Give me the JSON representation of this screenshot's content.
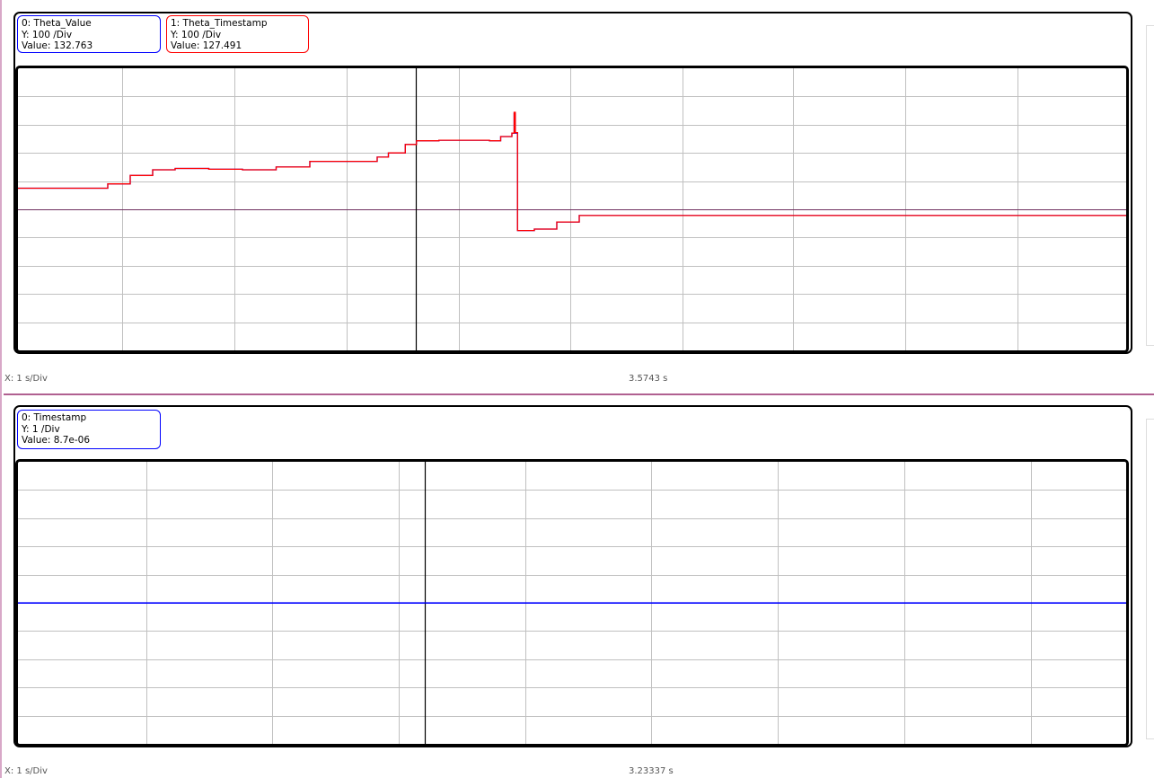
{
  "top_plot": {
    "x_scale": "X: 1 s/Div",
    "cursor_time": "3.5743 s",
    "legends": [
      {
        "name": "0: Theta_Value",
        "yscale": "Y: 100 /Div",
        "value": "Value: 132.763",
        "color": "#0000ff"
      },
      {
        "name": "1: Theta_Timestamp",
        "yscale": "Y: 100 /Div",
        "value": "Value: 127.491",
        "color": "#ff0000"
      }
    ]
  },
  "bottom_plot": {
    "x_scale": "X: 1 s/Div",
    "cursor_time": "3.23337 s",
    "legends": [
      {
        "name": "0: Timestamp",
        "yscale": "Y: 1 /Div",
        "value": "Value: 8.7e-06",
        "color": "#0000ff"
      }
    ]
  },
  "chart_data": [
    {
      "type": "line",
      "x_per_div_s": 1,
      "y_per_div": 100,
      "ylim": [
        -500,
        500
      ],
      "grid": true,
      "series": [
        {
          "name": "0: Theta_Value",
          "color": "#0000ff",
          "x": [
            0,
            0.6,
            0.8,
            1.0,
            1.2,
            1.4,
            1.7,
            2.0,
            2.3,
            2.6,
            3.2,
            3.3,
            3.45,
            3.55,
            3.75,
            4.2,
            4.3,
            4.4,
            4.42,
            4.43,
            4.45,
            4.6,
            4.8,
            5.0,
            9.95
          ],
          "y": [
            75,
            75,
            90,
            120,
            140,
            145,
            142,
            140,
            150,
            170,
            185,
            200,
            230,
            243,
            245,
            243,
            258,
            270,
            340,
            270,
            -75,
            -70,
            -45,
            -22,
            -22
          ]
        },
        {
          "name": "1: Theta_Timestamp",
          "color": "#ff0000",
          "x": [
            0,
            0.6,
            0.8,
            1.0,
            1.2,
            1.4,
            1.7,
            2.0,
            2.3,
            2.6,
            3.2,
            3.3,
            3.45,
            3.55,
            3.75,
            4.2,
            4.3,
            4.4,
            4.42,
            4.43,
            4.45,
            4.6,
            4.8,
            5.0,
            9.95
          ],
          "y": [
            75,
            75,
            90,
            120,
            140,
            145,
            142,
            140,
            150,
            170,
            185,
            200,
            230,
            243,
            245,
            243,
            258,
            270,
            344,
            272,
            -75,
            -70,
            -45,
            -22,
            -22
          ]
        }
      ]
    },
    {
      "type": "line",
      "x_per_div_s": 1,
      "y_per_div": 1,
      "ylim": [
        -5,
        5
      ],
      "grid": true,
      "series": [
        {
          "name": "0: Timestamp",
          "color": "#0000ff",
          "x": [
            0,
            8.8
          ],
          "y": [
            0,
            0
          ]
        }
      ]
    }
  ]
}
